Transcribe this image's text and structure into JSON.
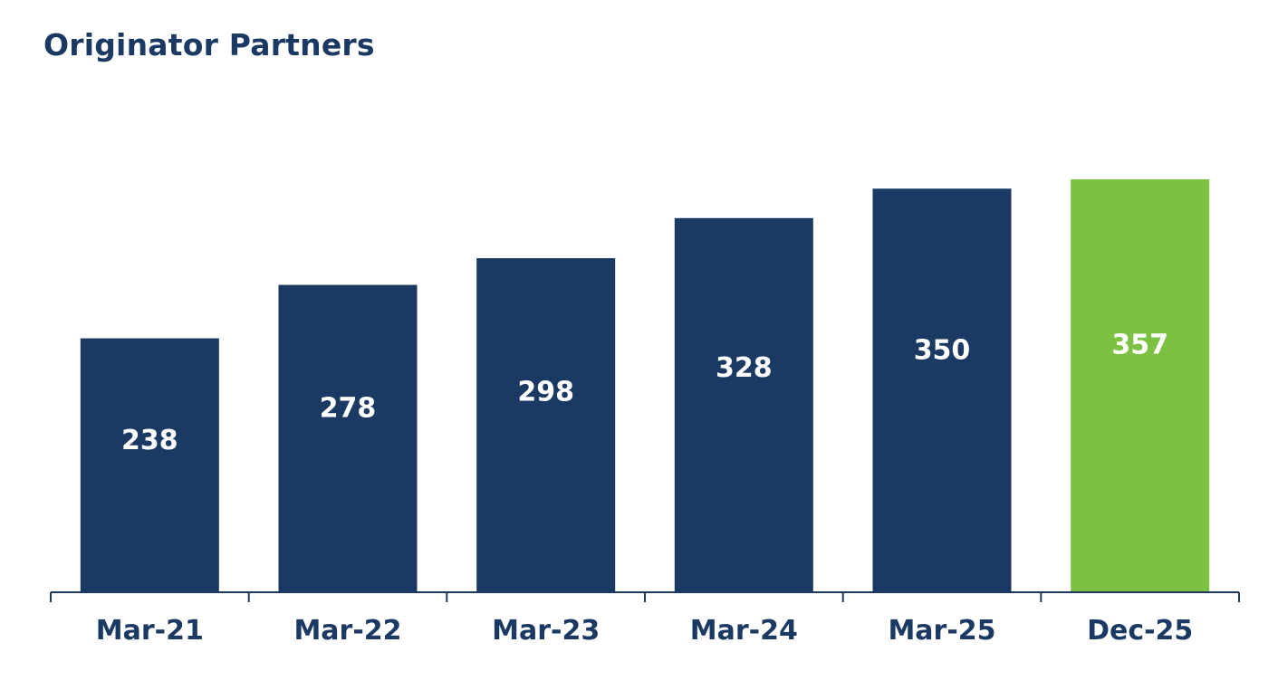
{
  "chart_data": {
    "type": "bar",
    "title": "Originator Partners",
    "categories": [
      "Mar-21",
      "Mar-22",
      "Mar-23",
      "Mar-24",
      "Mar-25",
      "Dec-25"
    ],
    "values": [
      238,
      278,
      298,
      328,
      350,
      357
    ],
    "data_labels": [
      "238",
      "278",
      "298",
      "328",
      "350",
      "357"
    ],
    "xlabel": "",
    "ylabel": "",
    "ylim": [
      48,
      357
    ],
    "grid": false,
    "legend": "none",
    "colors": {
      "default": "#1b3a63",
      "highlight": "#7dc142",
      "axis": "#1b3a63",
      "title": "#1b3a63"
    },
    "bar_colors": [
      "#1b3a63",
      "#1b3a63",
      "#1b3a63",
      "#1b3a63",
      "#1b3a63",
      "#7dc142"
    ]
  }
}
